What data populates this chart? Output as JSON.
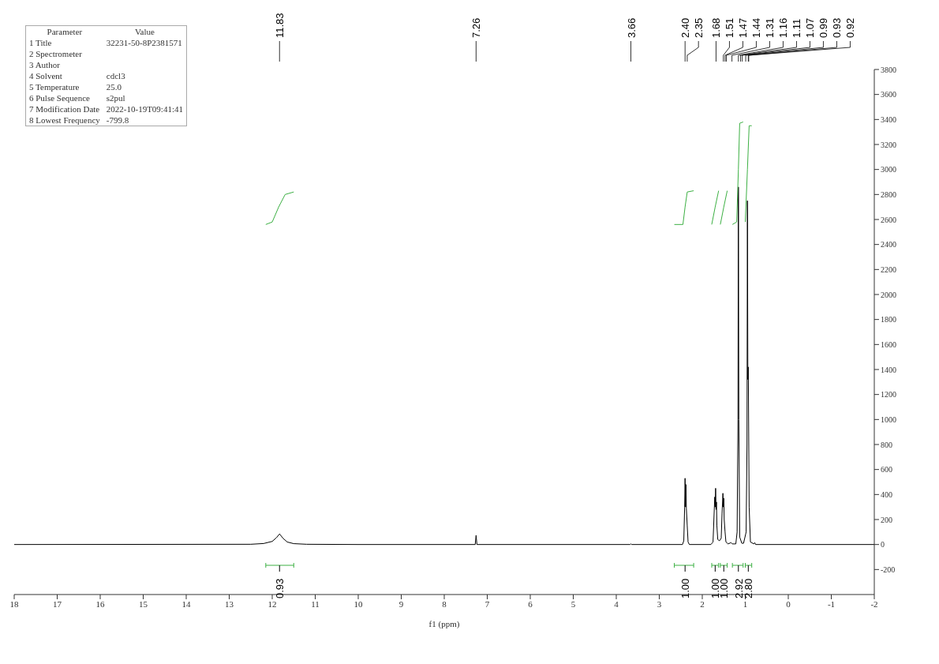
{
  "chart_data": {
    "type": "line",
    "xlabel": "f1 (ppm)",
    "xlim": [
      18,
      -2
    ],
    "xticks": [
      18,
      17,
      16,
      15,
      14,
      13,
      12,
      11,
      10,
      9,
      8,
      7,
      6,
      5,
      4,
      3,
      2,
      1,
      0,
      -1,
      -2
    ],
    "ylim": [
      -400,
      3800
    ],
    "yticks": [
      -200,
      0,
      200,
      400,
      600,
      800,
      1000,
      1200,
      1400,
      1600,
      1800,
      2000,
      2200,
      2400,
      2600,
      2800,
      3000,
      3200,
      3400,
      3600,
      3800
    ],
    "grid": false,
    "marker": "none",
    "line_style": "solid",
    "series": [
      {
        "color": "#000000",
        "x": [
          18,
          12.5,
          12.2,
          12.0,
          11.9,
          11.83,
          11.75,
          11.65,
          11.5,
          11.2,
          10,
          7.28,
          7.26,
          7.24,
          3.68,
          3.66,
          3.64,
          2.46,
          2.43,
          2.41,
          2.4,
          2.39,
          2.38,
          2.37,
          2.35,
          2.33,
          2.3,
          1.8,
          1.75,
          1.73,
          1.71,
          1.7,
          1.69,
          1.68,
          1.67,
          1.66,
          1.64,
          1.6,
          1.56,
          1.54,
          1.52,
          1.51,
          1.5,
          1.49,
          1.47,
          1.45,
          1.4,
          1.33,
          1.3,
          1.22,
          1.19,
          1.17,
          1.16,
          1.15,
          1.13,
          1.08,
          1.04,
          0.98,
          0.96,
          0.95,
          0.94,
          0.93,
          0.91,
          0.88,
          0.8,
          0.78,
          0.76,
          -2
        ],
        "values": [
          0,
          2,
          8,
          25,
          55,
          85,
          50,
          20,
          7,
          2,
          0,
          0,
          73,
          0,
          0,
          5,
          0,
          0,
          30,
          300,
          530,
          300,
          480,
          290,
          150,
          20,
          0,
          0,
          20,
          200,
          380,
          300,
          450,
          280,
          340,
          150,
          40,
          30,
          50,
          250,
          410,
          300,
          370,
          200,
          100,
          20,
          5,
          15,
          5,
          5,
          100,
          1000,
          2860,
          1000,
          60,
          10,
          10,
          100,
          800,
          2750,
          1320,
          1420,
          300,
          20,
          5,
          15,
          0,
          0
        ]
      },
      {
        "color": "#3cb043",
        "x": [
          12.15,
          12.0,
          11.85,
          11.7,
          11.5
        ],
        "values": [
          2560,
          2580,
          2700,
          2800,
          2820
        ]
      },
      {
        "color": "#3cb043",
        "x": [
          2.65,
          2.45,
          2.4,
          2.35,
          2.2
        ],
        "values": [
          2560,
          2560,
          2700,
          2820,
          2830
        ]
      },
      {
        "color": "#3cb043",
        "x": [
          1.78,
          1.7,
          1.62
        ],
        "values": [
          2560,
          2700,
          2830
        ]
      },
      {
        "color": "#3cb043",
        "x": [
          1.58,
          1.5,
          1.42
        ],
        "values": [
          2560,
          2700,
          2830
        ]
      },
      {
        "color": "#3cb043",
        "x": [
          1.3,
          1.2,
          1.16,
          1.13,
          1.05
        ],
        "values": [
          2560,
          2580,
          3000,
          3370,
          3380
        ]
      },
      {
        "color": "#3cb043",
        "x": [
          1.0,
          0.95,
          0.91,
          0.85
        ],
        "values": [
          2580,
          3000,
          3350,
          3350
        ]
      }
    ],
    "annotations": [
      "Parameter\tValue",
      "1 Title\t32231-50-8P2381571",
      "2 Spectrometer",
      "3 Author",
      "4 Solvent\tcdcl3",
      "5 Temperature\t25.0",
      "6 Pulse Sequence\ts2pul",
      "7 Modification Date\t2022-10-19T09:41:41",
      "8 Lowest Frequency\t-799.8",
      {
        "text": "11.83",
        "x": 11.83
      },
      {
        "text": "7.26",
        "x": 7.26
      },
      {
        "text": "3.66",
        "x": 3.66
      },
      {
        "text": "2.40",
        "x": 2.4
      },
      {
        "text": "2.35",
        "x": 2.35
      },
      {
        "text": "1.68",
        "x": 1.68
      },
      {
        "text": "1.51",
        "x": 1.51
      },
      {
        "text": "1.47",
        "x": 1.47
      },
      {
        "text": "1.44",
        "x": 1.44
      },
      {
        "text": "1.31",
        "x": 1.31
      },
      {
        "text": "1.16",
        "x": 1.16
      },
      {
        "text": "1.11",
        "x": 1.11
      },
      {
        "text": "1.07",
        "x": 1.07
      },
      {
        "text": "0.99",
        "x": 0.99
      },
      {
        "text": "0.93",
        "x": 0.93
      },
      {
        "text": "0.92",
        "x": 0.92
      },
      {
        "text": "0.93",
        "x": 11.83
      },
      {
        "text": "1.00",
        "x": 2.4
      },
      {
        "text": "1.00",
        "x": 1.7
      },
      {
        "text": "1.00",
        "x": 1.5
      },
      {
        "text": "2.92",
        "x": 1.16
      },
      {
        "text": "2.80",
        "x": 0.93
      }
    ]
  }
}
